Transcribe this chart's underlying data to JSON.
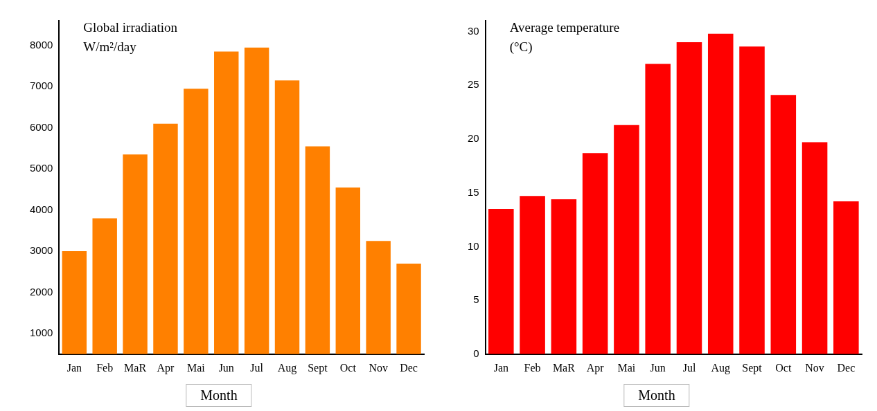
{
  "chart_data": [
    {
      "type": "bar",
      "xlabel": "Month",
      "annotations": [
        "Global irradiation W/m²/day"
      ],
      "categories": [
        "Jan",
        "Feb",
        "MaR",
        "Apr",
        "Mai",
        "Jun",
        "Jul",
        "Aug",
        "Sept",
        "Oct",
        "Nov",
        "Dec"
      ],
      "values": [
        3000,
        3800,
        5350,
        6100,
        6950,
        7850,
        7950,
        7150,
        5550,
        4550,
        3250,
        2700
      ],
      "color": "#ff8000",
      "ylim": [
        500,
        8600
      ],
      "yticks": [
        1000,
        2000,
        3000,
        4000,
        5000,
        6000,
        7000,
        8000
      ],
      "grid": false,
      "legend": false
    },
    {
      "type": "bar",
      "xlabel": "Month",
      "annotations": [
        "Average temperature (°C)"
      ],
      "categories": [
        "Jan",
        "Feb",
        "MaR",
        "Apr",
        "Mai",
        "Jun",
        "Jul",
        "Aug",
        "Sept",
        "Oct",
        "Nov",
        "Dec"
      ],
      "values": [
        13.5,
        14.7,
        14.4,
        18.7,
        21.3,
        27,
        29,
        29.8,
        28.6,
        24.1,
        19.7,
        14.2
      ],
      "color": "#ff0000",
      "ylim": [
        0,
        31
      ],
      "yticks": [
        0,
        5,
        10,
        15,
        20,
        25,
        30
      ],
      "grid": false,
      "legend": false
    }
  ]
}
